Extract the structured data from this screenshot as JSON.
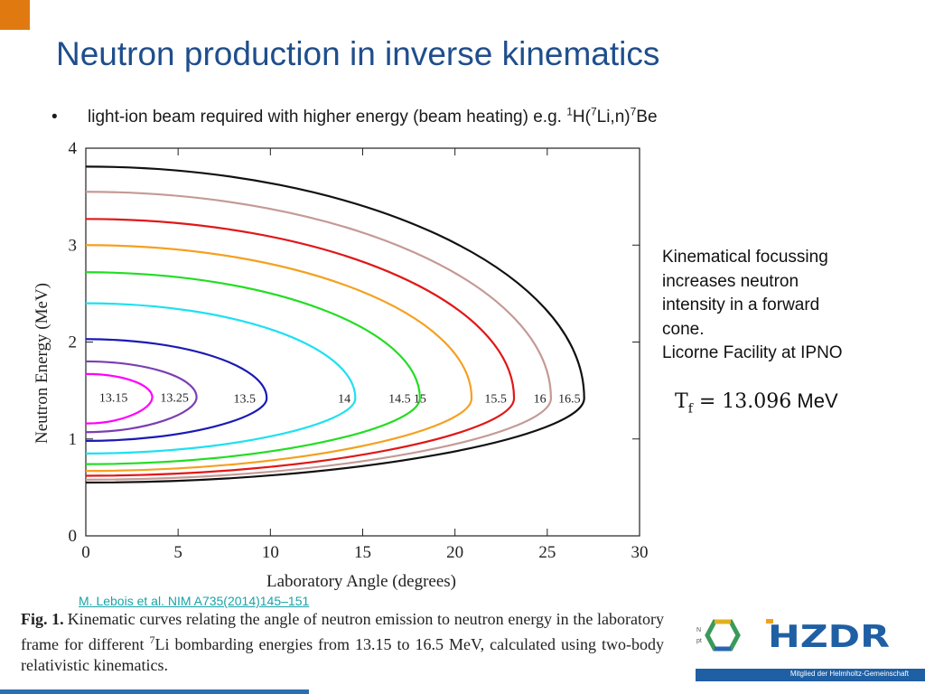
{
  "colors": {
    "accent_orange": "#e07a10",
    "title_blue": "#1f4e8c",
    "link_teal": "#1aa3a8",
    "hzdr_blue": "#1f5fa3",
    "footer_blue": "#1f5fa3",
    "bottom_line_blue": "#2c6fb0"
  },
  "slide": {
    "title": "Neutron production in inverse kinematics",
    "bullet": {
      "marker": "•",
      "text": "light-ion beam required with higher energy (beam heating) e.g. ",
      "sup1": "1",
      "h": "H(",
      "sup7a": "7",
      "li": "Li,n)",
      "sup7b": "7",
      "be": "Be"
    },
    "side_note": {
      "line1": "Kinematical focussing",
      "line2": "increases neutron",
      "line3": "intensity  in a forward",
      "line4": "cone.",
      "line5": "Licorne Facility at IPNO"
    },
    "formula": {
      "text": "T",
      "subscript": "f",
      "equals_value": " = 13.096",
      "unit": " MeV"
    },
    "citation": "M. Lebois et al. NIM A735(2014)145–151",
    "caption": {
      "label": "Fig. 1.",
      "text_before": "Kinematic curves relating the angle of neutron emission to neutron energy in the laboratory frame for different ",
      "sup": "7",
      "text_after": "Li bombarding energies from 13.15 to 16.5 MeV, calculated using two-body relativistic kinematics."
    },
    "footer": {
      "logo_text": "HZDR",
      "tagline": "Mitglied der Helmholtz-Gemeinschaft"
    }
  },
  "chart_data": {
    "type": "line",
    "title": "",
    "xlabel": "Laboratory Angle (degrees)",
    "ylabel": "Neutron Energy (MeV)",
    "xlim": [
      0,
      30
    ],
    "ylim": [
      0,
      4
    ],
    "xticks": [
      0,
      5,
      10,
      15,
      20,
      25,
      30
    ],
    "yticks": [
      0,
      1,
      2,
      3,
      4
    ],
    "grid": false,
    "legend": "none",
    "series": [
      {
        "name": "13.15",
        "label": "13.15",
        "color": "#ff00ff",
        "theta_max": 3.6,
        "e_top": 1.67,
        "e_bottom": 1.16,
        "e_mid": 1.43,
        "label_at": [
          1.5,
          1.43
        ]
      },
      {
        "name": "13.25",
        "label": "13.25",
        "color": "#7b3fb0",
        "theta_max": 6.0,
        "e_top": 1.8,
        "e_bottom": 1.07,
        "e_mid": 1.43,
        "label_at": [
          4.8,
          1.43
        ]
      },
      {
        "name": "13.5",
        "label": "13.5",
        "color": "#1a1ab4",
        "theta_max": 9.8,
        "e_top": 2.03,
        "e_bottom": 0.98,
        "e_mid": 1.42,
        "label_at": [
          8.6,
          1.42
        ]
      },
      {
        "name": "14",
        "label": "14",
        "color": "#1ee0f0",
        "theta_max": 14.6,
        "e_top": 2.4,
        "e_bottom": 0.85,
        "e_mid": 1.42,
        "label_at": [
          14.0,
          1.42
        ]
      },
      {
        "name": "14.5",
        "label": "14.5",
        "color": "#22dd22",
        "theta_max": 18.1,
        "e_top": 2.72,
        "e_bottom": 0.74,
        "e_mid": 1.42,
        "label_at": [
          17.0,
          1.42
        ]
      },
      {
        "name": "15",
        "label": "15",
        "color": "#f5a020",
        "theta_max": 20.9,
        "e_top": 3.0,
        "e_bottom": 0.67,
        "e_mid": 1.42,
        "label_at": [
          18.1,
          1.42
        ]
      },
      {
        "name": "15.5",
        "label": "15.5",
        "color": "#e01818",
        "theta_max": 23.2,
        "e_top": 3.27,
        "e_bottom": 0.62,
        "e_mid": 1.42,
        "label_at": [
          22.2,
          1.42
        ]
      },
      {
        "name": "16",
        "label": "16",
        "color": "#c49a96",
        "theta_max": 25.2,
        "e_top": 3.55,
        "e_bottom": 0.58,
        "e_mid": 1.42,
        "label_at": [
          24.6,
          1.42
        ]
      },
      {
        "name": "16.5",
        "label": "16.5",
        "color": "#111111",
        "theta_max": 27.0,
        "e_top": 3.81,
        "e_bottom": 0.55,
        "e_mid": 1.42,
        "label_at": [
          26.2,
          1.42
        ]
      }
    ]
  }
}
